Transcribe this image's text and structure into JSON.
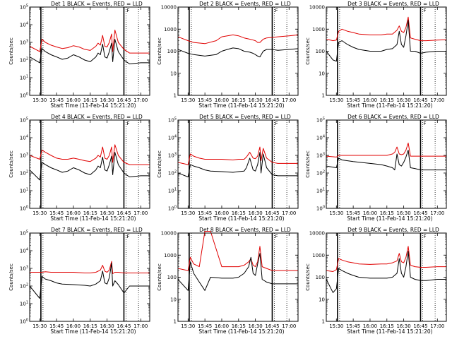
{
  "figure": {
    "xlabel": "Start Time (11-Feb-14 15:21:20)",
    "ylabel": "Counts/sec",
    "marker_label": "F",
    "x_ticks": [
      "15:30",
      "15:45",
      "16:00",
      "16:15",
      "16:30",
      "16:45",
      "17:00"
    ],
    "colors": {
      "events": "#000000",
      "lld": "#e00000",
      "axes": "#000000"
    }
  },
  "chart_data": [
    {
      "type": "line",
      "title": "Det 1 BLACK = Events, RED = LLD",
      "y_scale": "log",
      "ylim": [
        1,
        100000
      ],
      "y_tick_labels": [
        "10^0",
        "10^1",
        "10^2",
        "10^3",
        "10^4",
        "10^5"
      ],
      "x": [
        "15:21",
        "15:30",
        "15:32",
        "15:35",
        "15:40",
        "15:45",
        "15:50",
        "15:55",
        "16:00",
        "16:05",
        "16:10",
        "16:15",
        "16:20",
        "16:22",
        "16:24",
        "16:26",
        "16:28",
        "16:30",
        "16:32",
        "16:34",
        "16:35",
        "16:37",
        "16:40",
        "16:45",
        "16:50",
        "17:00",
        "17:08"
      ],
      "series": [
        {
          "color": "#e00000",
          "values": [
            600,
            300,
            1500,
            1000,
            700,
            550,
            450,
            500,
            650,
            550,
            400,
            350,
            600,
            900,
            700,
            2500,
            600,
            550,
            1000,
            3000,
            300,
            5000,
            1000,
            400,
            250,
            250,
            250
          ]
        },
        {
          "color": "#000000",
          "values": [
            150,
            70,
            450,
            300,
            200,
            150,
            110,
            130,
            200,
            150,
            100,
            80,
            150,
            250,
            200,
            800,
            150,
            130,
            300,
            900,
            80,
            1500,
            300,
            100,
            60,
            70,
            70
          ]
        }
      ],
      "markers": [
        "15:31",
        "16:45"
      ]
    },
    {
      "type": "line",
      "title": "Det 2 BLACK = Events, RED = LLD",
      "y_scale": "log",
      "ylim": [
        1,
        10000
      ],
      "y_tick_labels": [
        "1",
        "10",
        "100",
        "1000",
        "10000"
      ],
      "x": [
        "15:21",
        "15:30",
        "15:35",
        "15:45",
        "15:55",
        "16:00",
        "16:05",
        "16:10",
        "16:15",
        "16:20",
        "16:25",
        "16:28",
        "16:30",
        "16:32",
        "16:34",
        "16:37",
        "16:40",
        "16:45",
        "16:50",
        "17:00",
        "17:08"
      ],
      "series": [
        {
          "color": "#e00000",
          "values": [
            450,
            300,
            250,
            220,
            300,
            450,
            500,
            550,
            500,
            400,
            350,
            320,
            300,
            250,
            250,
            350,
            400,
            420,
            450,
            500,
            550
          ]
        },
        {
          "color": "#000000",
          "values": [
            120,
            80,
            70,
            60,
            70,
            100,
            120,
            140,
            130,
            100,
            90,
            80,
            70,
            60,
            55,
            100,
            120,
            120,
            110,
            120,
            130
          ]
        }
      ],
      "markers": [
        "15:31",
        "16:45"
      ]
    },
    {
      "type": "line",
      "title": "Det 3 BLACK = Events, RED = LLD",
      "y_scale": "log",
      "ylim": [
        1,
        10000
      ],
      "y_tick_labels": [
        "1",
        "10",
        "100",
        "1000",
        "10000"
      ],
      "x": [
        "15:21",
        "15:27",
        "15:30",
        "15:32",
        "15:35",
        "15:40",
        "15:45",
        "15:50",
        "16:00",
        "16:10",
        "16:15",
        "16:20",
        "16:24",
        "16:26",
        "16:28",
        "16:30",
        "16:32",
        "16:34",
        "16:36",
        "16:40",
        "16:45",
        "16:50",
        "17:00",
        "17:08"
      ],
      "series": [
        {
          "color": "#e00000",
          "values": [
            350,
            300,
            320,
            800,
            1000,
            800,
            700,
            600,
            550,
            550,
            600,
            600,
            900,
            1400,
            800,
            700,
            1200,
            3500,
            400,
            350,
            300,
            300,
            320,
            330
          ]
        },
        {
          "color": "#000000",
          "values": [
            100,
            40,
            35,
            250,
            300,
            200,
            150,
            120,
            100,
            100,
            120,
            130,
            200,
            800,
            200,
            150,
            500,
            2500,
            100,
            100,
            80,
            90,
            100,
            100
          ]
        }
      ],
      "markers": [
        "15:31",
        "16:45"
      ]
    },
    {
      "type": "line",
      "title": "Det 4 BLACK = Events, RED = LLD",
      "y_scale": "log",
      "ylim": [
        1,
        100000
      ],
      "y_tick_labels": [
        "10^0",
        "10^1",
        "10^2",
        "10^3",
        "10^4",
        "10^5"
      ],
      "x": [
        "15:21",
        "15:30",
        "15:32",
        "15:35",
        "15:40",
        "15:45",
        "15:50",
        "15:55",
        "16:00",
        "16:05",
        "16:10",
        "16:15",
        "16:20",
        "16:22",
        "16:24",
        "16:26",
        "16:28",
        "16:30",
        "16:32",
        "16:34",
        "16:35",
        "16:37",
        "16:40",
        "16:45",
        "16:50",
        "17:00",
        "17:08"
      ],
      "series": [
        {
          "color": "#e00000",
          "values": [
            1000,
            600,
            2000,
            1500,
            1000,
            700,
            600,
            600,
            700,
            600,
            500,
            450,
            700,
            1000,
            800,
            3000,
            700,
            600,
            1000,
            3000,
            400,
            4000,
            1000,
            400,
            300,
            300,
            300
          ]
        },
        {
          "color": "#000000",
          "values": [
            150,
            40,
            400,
            300,
            200,
            150,
            110,
            130,
            200,
            150,
            100,
            80,
            150,
            250,
            200,
            800,
            150,
            130,
            300,
            900,
            80,
            1500,
            300,
            100,
            60,
            70,
            70
          ]
        }
      ],
      "markers": [
        "15:31",
        "16:45"
      ]
    },
    {
      "type": "line",
      "title": "Det 5 BLACK = Events, RED = LLD",
      "y_scale": "log",
      "ylim": [
        1,
        100000
      ],
      "y_tick_labels": [
        "10^0",
        "10^1",
        "10^2",
        "10^3",
        "10^4",
        "10^5"
      ],
      "x": [
        "15:21",
        "15:30",
        "15:32",
        "15:35",
        "15:40",
        "15:45",
        "15:50",
        "16:00",
        "16:10",
        "16:15",
        "16:20",
        "16:22",
        "16:25",
        "16:28",
        "16:30",
        "16:32",
        "16:34",
        "16:35",
        "16:37",
        "16:40",
        "16:45",
        "16:50",
        "17:00",
        "17:08"
      ],
      "series": [
        {
          "color": "#e00000",
          "values": [
            400,
            300,
            1200,
            900,
            700,
            600,
            600,
            600,
            550,
            600,
            600,
            800,
            1500,
            700,
            650,
            900,
            3000,
            500,
            2500,
            700,
            400,
            350,
            350,
            350
          ]
        },
        {
          "color": "#000000",
          "values": [
            100,
            60,
            300,
            250,
            200,
            150,
            130,
            120,
            110,
            120,
            130,
            200,
            700,
            150,
            130,
            300,
            1500,
            100,
            1200,
            200,
            80,
            70,
            70,
            70
          ]
        }
      ],
      "markers": [
        "15:31",
        "16:45"
      ]
    },
    {
      "type": "line",
      "title": "Det 6 BLACK = Events, RED = LLD",
      "y_scale": "log",
      "ylim": [
        1,
        100000
      ],
      "y_tick_labels": [
        "10^0",
        "10^1",
        "10^2",
        "10^3",
        "10^4",
        "10^5"
      ],
      "x": [
        "15:21",
        "15:30",
        "15:32",
        "15:35",
        "15:45",
        "16:00",
        "16:10",
        "16:15",
        "16:20",
        "16:22",
        "16:24",
        "16:26",
        "16:28",
        "16:30",
        "16:32",
        "16:34",
        "16:36",
        "16:40",
        "16:45",
        "16:50",
        "17:00",
        "17:08"
      ],
      "series": [
        {
          "color": "#e00000",
          "values": [
            900,
            800,
            1000,
            1000,
            1000,
            1000,
            1000,
            1000,
            1200,
            1500,
            3000,
            1200,
            1100,
            1200,
            2000,
            5000,
            900,
            900,
            900,
            900,
            900,
            900
          ]
        },
        {
          "color": "#000000",
          "values": [
            250,
            200,
            700,
            550,
            450,
            350,
            300,
            250,
            200,
            150,
            1200,
            300,
            250,
            400,
            800,
            2000,
            200,
            180,
            150,
            150,
            150,
            150
          ]
        }
      ],
      "markers": [
        "15:31",
        "16:45"
      ]
    },
    {
      "type": "line",
      "title": "Det 7 BLACK = Events, RED = LLD",
      "y_scale": "log",
      "ylim": [
        1,
        100000
      ],
      "y_tick_labels": [
        "10^0",
        "10^1",
        "10^2",
        "10^3",
        "10^4",
        "10^5"
      ],
      "x": [
        "15:21",
        "15:30",
        "15:32",
        "15:35",
        "15:40",
        "15:45",
        "15:50",
        "16:00",
        "16:10",
        "16:15",
        "16:20",
        "16:24",
        "16:26",
        "16:28",
        "16:30",
        "16:32",
        "16:34",
        "16:35",
        "16:37",
        "16:40",
        "16:45",
        "16:50",
        "17:00",
        "17:08"
      ],
      "series": [
        {
          "color": "#e00000",
          "values": [
            600,
            600,
            600,
            650,
            600,
            600,
            600,
            600,
            550,
            550,
            600,
            800,
            1500,
            700,
            600,
            800,
            2500,
            500,
            600,
            600,
            550,
            550,
            550,
            550
          ]
        },
        {
          "color": "#000000",
          "values": [
            100,
            20,
            350,
            250,
            200,
            150,
            130,
            120,
            110,
            100,
            130,
            200,
            700,
            150,
            130,
            300,
            2000,
            100,
            200,
            120,
            40,
            100,
            100,
            100
          ]
        }
      ],
      "markers": [
        "15:31",
        "16:45"
      ]
    },
    {
      "type": "line",
      "title": "Det 8 BLACK = Events, RED = LLD",
      "y_scale": "log",
      "ylim": [
        1,
        10000
      ],
      "y_tick_labels": [
        "1",
        "10",
        "100",
        "1000",
        "10000"
      ],
      "x": [
        "15:21",
        "15:30",
        "15:32",
        "15:35",
        "15:40",
        "15:45",
        "15:50",
        "16:00",
        "16:05",
        "16:10",
        "16:15",
        "16:20",
        "16:24",
        "16:26",
        "16:28",
        "16:30",
        "16:32",
        "16:34",
        "16:36",
        "16:40",
        "16:45",
        "16:50",
        "17:00",
        "17:08"
      ],
      "series": [
        {
          "color": "#e00000",
          "values": [
            250,
            200,
            800,
            400,
            300,
            12000,
            12000,
            300,
            300,
            300,
            300,
            350,
            500,
            700,
            350,
            300,
            500,
            2500,
            300,
            250,
            200,
            200,
            200,
            200
          ]
        },
        {
          "color": "#000000",
          "values": [
            80,
            25,
            500,
            150,
            60,
            25,
            100,
            90,
            90,
            90,
            100,
            150,
            300,
            800,
            150,
            120,
            400,
            1200,
            80,
            60,
            50,
            50,
            50,
            50
          ]
        }
      ],
      "markers": [
        "15:31",
        "16:45"
      ]
    },
    {
      "type": "line",
      "title": "Det 9 BLACK = Events, RED = LLD",
      "y_scale": "log",
      "ylim": [
        1,
        10000
      ],
      "y_tick_labels": [
        "1",
        "10",
        "100",
        "1000",
        "10000"
      ],
      "x": [
        "15:21",
        "15:27",
        "15:30",
        "15:32",
        "15:35",
        "15:40",
        "15:45",
        "15:50",
        "16:00",
        "16:10",
        "16:15",
        "16:20",
        "16:24",
        "16:26",
        "16:28",
        "16:30",
        "16:32",
        "16:34",
        "16:36",
        "16:40",
        "16:45",
        "16:50",
        "17:00",
        "17:08"
      ],
      "series": [
        {
          "color": "#e00000",
          "values": [
            200,
            180,
            220,
            700,
            600,
            500,
            450,
            400,
            380,
            400,
            400,
            450,
            550,
            1200,
            500,
            450,
            800,
            2500,
            350,
            300,
            280,
            280,
            300,
            300
          ]
        },
        {
          "color": "#000000",
          "values": [
            80,
            20,
            30,
            250,
            200,
            150,
            120,
            100,
            90,
            90,
            90,
            100,
            150,
            700,
            150,
            100,
            300,
            1500,
            100,
            80,
            70,
            70,
            80,
            80
          ]
        }
      ],
      "markers": [
        "15:31",
        "16:45"
      ]
    }
  ]
}
